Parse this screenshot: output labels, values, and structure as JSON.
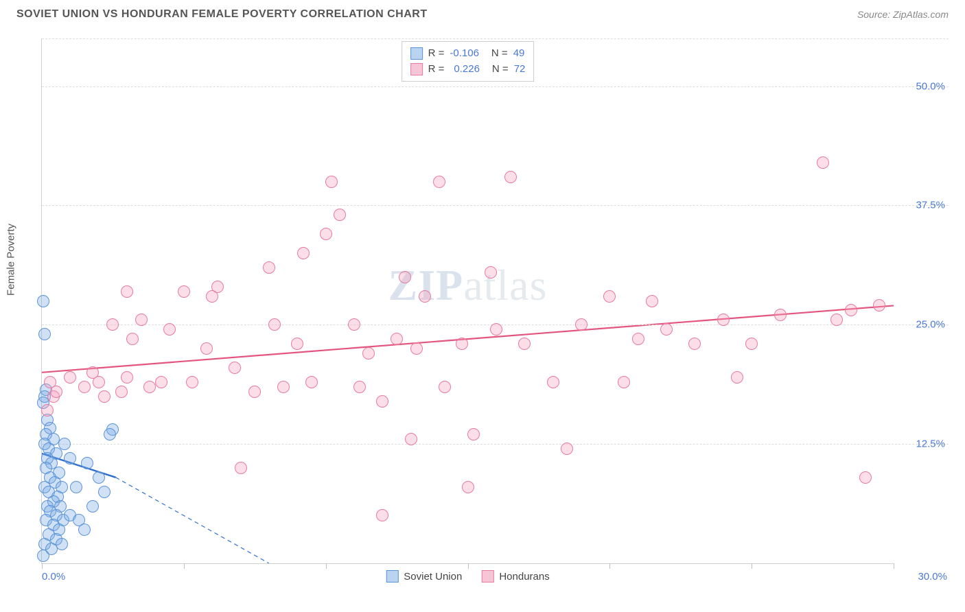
{
  "header": {
    "title": "SOVIET UNION VS HONDURAN FEMALE POVERTY CORRELATION CHART",
    "source_prefix": "Source: ",
    "source_name": "ZipAtlas.com"
  },
  "watermark": {
    "zip": "ZIP",
    "atlas": "atlas"
  },
  "chart": {
    "type": "scatter",
    "ylabel": "Female Poverty",
    "background_color": "#ffffff",
    "grid_color": "#dcdcdc",
    "axis_color": "#d0d0d0",
    "tick_label_color": "#4a78d6",
    "xlim": [
      0,
      30
    ],
    "ylim": [
      0,
      55
    ],
    "xticks": [
      0,
      5,
      10,
      15,
      20,
      25,
      30
    ],
    "xtick_labels": [
      "0.0%",
      "",
      "",
      "",
      "",
      "",
      "30.0%"
    ],
    "yticks": [
      12.5,
      25.0,
      37.5,
      50.0
    ],
    "ytick_labels": [
      "12.5%",
      "25.0%",
      "37.5%",
      "50.0%"
    ],
    "marker_radius": 9,
    "marker_stroke_width": 1.5,
    "series": [
      {
        "name": "Soviet Union",
        "fill": "rgba(120,170,230,0.35)",
        "stroke": "#5a94d8",
        "swatch_fill": "#b9d3f0",
        "swatch_border": "#5a94d8",
        "R": "-0.106",
        "N": "49",
        "trend": {
          "x1": 0,
          "y1": 11.5,
          "x2": 2.6,
          "y2": 9.0,
          "color": "#2f6fd0",
          "width": 2.4,
          "dash": ""
        },
        "trend_ext": {
          "x1": 2.6,
          "y1": 9.0,
          "x2": 8.0,
          "y2": 0.0,
          "color": "#2f6fd0",
          "width": 1.2,
          "dash": "6 5"
        },
        "points": [
          [
            0.05,
            27.5
          ],
          [
            0.1,
            24.0
          ],
          [
            0.15,
            18.2
          ],
          [
            0.1,
            17.5
          ],
          [
            0.05,
            16.8
          ],
          [
            0.2,
            15.0
          ],
          [
            0.3,
            14.2
          ],
          [
            0.15,
            13.5
          ],
          [
            0.4,
            13.0
          ],
          [
            0.1,
            12.5
          ],
          [
            0.25,
            12.0
          ],
          [
            0.5,
            11.5
          ],
          [
            0.2,
            11.0
          ],
          [
            0.35,
            10.5
          ],
          [
            0.15,
            10.0
          ],
          [
            0.6,
            9.5
          ],
          [
            0.3,
            9.0
          ],
          [
            0.45,
            8.5
          ],
          [
            0.1,
            8.0
          ],
          [
            0.7,
            8.0
          ],
          [
            0.25,
            7.5
          ],
          [
            0.55,
            7.0
          ],
          [
            0.4,
            6.5
          ],
          [
            0.2,
            6.0
          ],
          [
            0.65,
            6.0
          ],
          [
            0.3,
            5.5
          ],
          [
            0.5,
            5.0
          ],
          [
            0.15,
            4.5
          ],
          [
            0.75,
            4.5
          ],
          [
            0.4,
            4.0
          ],
          [
            0.6,
            3.5
          ],
          [
            0.25,
            3.0
          ],
          [
            0.5,
            2.5
          ],
          [
            0.1,
            2.0
          ],
          [
            0.7,
            2.0
          ],
          [
            0.35,
            1.5
          ],
          [
            0.05,
            0.8
          ],
          [
            1.0,
            5.0
          ],
          [
            1.3,
            4.5
          ],
          [
            1.5,
            3.5
          ],
          [
            1.2,
            8.0
          ],
          [
            1.8,
            6.0
          ],
          [
            2.0,
            9.0
          ],
          [
            2.2,
            7.5
          ],
          [
            2.5,
            14.0
          ],
          [
            2.4,
            13.5
          ],
          [
            1.6,
            10.5
          ],
          [
            1.0,
            11.0
          ],
          [
            0.8,
            12.5
          ]
        ]
      },
      {
        "name": "Hondurans",
        "fill": "rgba(245,160,190,0.35)",
        "stroke": "#e77aa0",
        "swatch_fill": "#f6c6d7",
        "swatch_border": "#e77aa0",
        "R": "0.226",
        "N": "72",
        "trend": {
          "x1": 0,
          "y1": 20.0,
          "x2": 30,
          "y2": 27.0,
          "color": "#e3557f",
          "width": 2.2,
          "dash": ""
        },
        "points": [
          [
            0.3,
            19.0
          ],
          [
            0.4,
            17.5
          ],
          [
            0.2,
            16.0
          ],
          [
            0.5,
            18.0
          ],
          [
            1.0,
            19.5
          ],
          [
            1.5,
            18.5
          ],
          [
            1.8,
            20.0
          ],
          [
            2.0,
            19.0
          ],
          [
            2.2,
            17.5
          ],
          [
            2.5,
            25.0
          ],
          [
            2.8,
            18.0
          ],
          [
            3.0,
            19.5
          ],
          [
            3.2,
            23.5
          ],
          [
            3.5,
            25.5
          ],
          [
            3.8,
            18.5
          ],
          [
            4.2,
            19.0
          ],
          [
            4.5,
            24.5
          ],
          [
            5.0,
            28.5
          ],
          [
            5.3,
            19.0
          ],
          [
            5.8,
            22.5
          ],
          [
            6.2,
            29.0
          ],
          [
            6.8,
            20.5
          ],
          [
            7.0,
            10.0
          ],
          [
            7.5,
            18.0
          ],
          [
            8.0,
            31.0
          ],
          [
            8.2,
            25.0
          ],
          [
            8.5,
            18.5
          ],
          [
            9.0,
            23.0
          ],
          [
            9.2,
            32.5
          ],
          [
            9.5,
            19.0
          ],
          [
            10.0,
            34.5
          ],
          [
            10.2,
            40.0
          ],
          [
            10.5,
            36.5
          ],
          [
            11.0,
            25.0
          ],
          [
            11.2,
            18.5
          ],
          [
            11.5,
            22.0
          ],
          [
            12.0,
            5.0
          ],
          [
            12.0,
            17.0
          ],
          [
            12.5,
            23.5
          ],
          [
            12.8,
            30.0
          ],
          [
            13.0,
            13.0
          ],
          [
            13.2,
            22.5
          ],
          [
            13.5,
            28.0
          ],
          [
            14.0,
            40.0
          ],
          [
            14.2,
            18.5
          ],
          [
            14.8,
            23.0
          ],
          [
            15.0,
            8.0
          ],
          [
            15.2,
            13.5
          ],
          [
            15.8,
            30.5
          ],
          [
            16.0,
            24.5
          ],
          [
            16.5,
            40.5
          ],
          [
            17.0,
            23.0
          ],
          [
            18.0,
            19.0
          ],
          [
            18.5,
            12.0
          ],
          [
            19.0,
            25.0
          ],
          [
            20.0,
            28.0
          ],
          [
            20.5,
            19.0
          ],
          [
            21.0,
            23.5
          ],
          [
            21.5,
            27.5
          ],
          [
            22.0,
            24.5
          ],
          [
            23.0,
            23.0
          ],
          [
            24.0,
            25.5
          ],
          [
            24.5,
            19.5
          ],
          [
            25.0,
            23.0
          ],
          [
            26.0,
            26.0
          ],
          [
            27.5,
            42.0
          ],
          [
            28.0,
            25.5
          ],
          [
            28.5,
            26.5
          ],
          [
            29.0,
            9.0
          ],
          [
            29.5,
            27.0
          ],
          [
            3.0,
            28.5
          ],
          [
            6.0,
            28.0
          ]
        ]
      }
    ],
    "legend_bottom": [
      {
        "label": "Soviet Union",
        "fill": "#b9d3f0",
        "border": "#5a94d8"
      },
      {
        "label": "Hondurans",
        "fill": "#f6c6d7",
        "border": "#e77aa0"
      }
    ]
  }
}
